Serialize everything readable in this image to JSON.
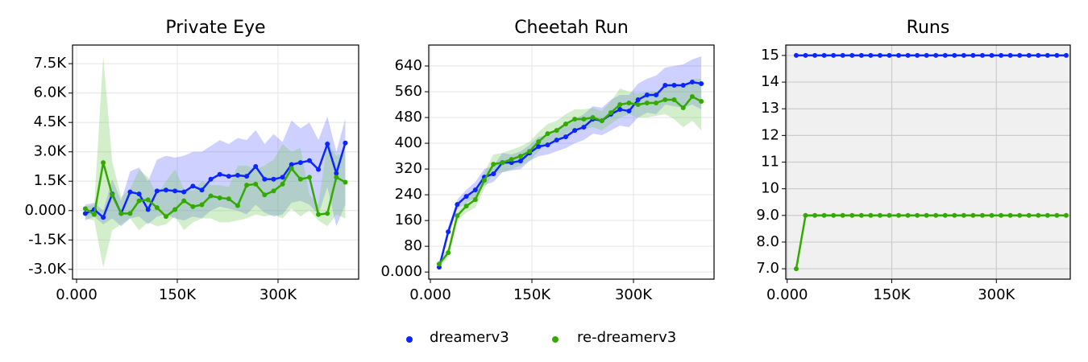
{
  "chart_data": [
    {
      "type": "line",
      "title": "Private Eye",
      "x": [
        13000,
        26350,
        39700,
        53050,
        66400,
        79750,
        93100,
        106450,
        119800,
        133150,
        146500,
        159850,
        173200,
        186550,
        199900,
        213250,
        226600,
        239950,
        253300,
        266650,
        280000,
        293350,
        306700,
        320050,
        333400,
        346750,
        360100,
        373450,
        386800,
        400150
      ],
      "xlim": [
        -6000,
        420000
      ],
      "xticks": [
        {
          "value": 0,
          "label": "0.000"
        },
        {
          "value": 150000,
          "label": "150K"
        },
        {
          "value": 300000,
          "label": "300K"
        }
      ],
      "ylim": [
        -3500,
        8450
      ],
      "yticks": [
        {
          "value": -3000,
          "label": "-3.0K"
        },
        {
          "value": -1500,
          "label": "-1.5K"
        },
        {
          "value": 0,
          "label": "0.000"
        },
        {
          "value": 1500,
          "label": "1.5K"
        },
        {
          "value": 3000,
          "label": "3.0K"
        },
        {
          "value": 4500,
          "label": "4.5K"
        },
        {
          "value": 6000,
          "label": "6.0K"
        },
        {
          "value": 7500,
          "label": "7.5K"
        }
      ],
      "grid": true,
      "facecolor": "#ffffff",
      "grid_color": "#e8e8e8",
      "series": [
        {
          "name": "dreamerv3",
          "color": "#0a25ff",
          "values": [
            -150,
            50,
            -350,
            850,
            -150,
            950,
            850,
            50,
            1000,
            1050,
            1000,
            950,
            1250,
            1050,
            1600,
            1850,
            1750,
            1800,
            1750,
            2250,
            1600,
            1600,
            1700,
            2350,
            2450,
            2550,
            2100,
            3400,
            1900,
            3450
          ],
          "lower": [
            -500,
            -300,
            -700,
            -400,
            -800,
            -400,
            -300,
            -700,
            -300,
            -200,
            -400,
            -500,
            -300,
            -400,
            0,
            200,
            100,
            0,
            -200,
            300,
            -100,
            -300,
            -200,
            400,
            500,
            300,
            -200,
            1200,
            -800,
            300
          ],
          "upper": [
            300,
            400,
            0,
            1600,
            500,
            2000,
            2200,
            1500,
            2600,
            2800,
            2700,
            2800,
            3000,
            3000,
            3300,
            3600,
            3400,
            3700,
            3600,
            4100,
            3400,
            3900,
            3500,
            4600,
            4200,
            4500,
            3600,
            4800,
            3000,
            4700
          ]
        },
        {
          "name": "re-dreamerv3",
          "color": "#33aa00",
          "values": [
            100,
            -200,
            2450,
            800,
            -150,
            -150,
            500,
            550,
            150,
            -300,
            50,
            500,
            200,
            300,
            750,
            650,
            600,
            250,
            1300,
            1350,
            800,
            1000,
            1350,
            2150,
            1600,
            1700,
            -200,
            -150,
            1700,
            1450
          ],
          "lower": [
            -400,
            -500,
            -2900,
            -1000,
            -700,
            -400,
            -1000,
            -600,
            -800,
            -700,
            -300,
            -1000,
            -600,
            -400,
            -400,
            -600,
            -600,
            -500,
            -400,
            -200,
            -300,
            -200,
            -400,
            100,
            -300,
            0,
            -500,
            -800,
            -200,
            -400
          ],
          "upper": [
            200,
            300,
            7900,
            2500,
            700,
            1100,
            2100,
            1700,
            800,
            1500,
            2100,
            1100,
            1000,
            1500,
            1300,
            1300,
            1200,
            2300,
            2300,
            2100,
            2300,
            2600,
            3400,
            3000,
            3200,
            800,
            300,
            3500,
            2800,
            3000
          ]
        }
      ]
    },
    {
      "type": "line",
      "title": "Cheetah Run",
      "x": [
        13000,
        26350,
        39700,
        53050,
        66400,
        79750,
        93100,
        106450,
        119800,
        133150,
        146500,
        159850,
        173200,
        186550,
        199900,
        213250,
        226600,
        239950,
        253300,
        266650,
        280000,
        293350,
        306700,
        320050,
        333400,
        346750,
        360100,
        373450,
        386800,
        400150
      ],
      "xlim": [
        -2400,
        419000
      ],
      "xticks": [
        {
          "value": 0,
          "label": "0.000"
        },
        {
          "value": 150000,
          "label": "150K"
        },
        {
          "value": 300000,
          "label": "300K"
        }
      ],
      "ylim": [
        -22,
        705
      ],
      "yticks": [
        {
          "value": 0,
          "label": "0.000"
        },
        80,
        160,
        240,
        320,
        400,
        480,
        560,
        640
      ],
      "grid": true,
      "facecolor": "#ffffff",
      "grid_color": "#e8e8e8",
      "series": [
        {
          "color": "#0a25ff",
          "values": [
            15,
            125,
            210,
            235,
            255,
            295,
            305,
            340,
            340,
            345,
            370,
            390,
            395,
            410,
            420,
            440,
            450,
            475,
            470,
            490,
            505,
            500,
            535,
            550,
            550,
            580,
            580,
            580,
            590,
            585
          ],
          "lower": [
            10,
            110,
            195,
            215,
            230,
            270,
            280,
            310,
            315,
            320,
            345,
            360,
            365,
            375,
            385,
            400,
            410,
            430,
            425,
            440,
            455,
            450,
            480,
            495,
            490,
            520,
            515,
            510,
            520,
            505
          ],
          "upper": [
            25,
            140,
            225,
            255,
            280,
            320,
            330,
            370,
            365,
            375,
            395,
            420,
            425,
            440,
            455,
            475,
            490,
            515,
            510,
            535,
            550,
            550,
            585,
            600,
            610,
            635,
            640,
            645,
            660,
            670
          ]
        },
        {
          "color": "#33aa00",
          "values": [
            25,
            60,
            175,
            205,
            225,
            285,
            335,
            340,
            350,
            360,
            375,
            405,
            430,
            440,
            460,
            475,
            475,
            480,
            470,
            495,
            520,
            525,
            520,
            525,
            525,
            535,
            535,
            510,
            545,
            530
          ],
          "lower": [
            15,
            45,
            160,
            185,
            200,
            260,
            305,
            310,
            320,
            330,
            345,
            375,
            400,
            410,
            430,
            445,
            445,
            450,
            440,
            460,
            480,
            490,
            480,
            480,
            485,
            490,
            475,
            450,
            470,
            440
          ],
          "upper": [
            35,
            75,
            190,
            225,
            250,
            310,
            365,
            370,
            380,
            390,
            405,
            435,
            460,
            470,
            490,
            505,
            505,
            510,
            500,
            530,
            570,
            560,
            555,
            560,
            560,
            575,
            590,
            570,
            600,
            600
          ]
        }
      ]
    },
    {
      "type": "line",
      "title": "Runs",
      "x": [
        13000,
        26350,
        39700,
        53050,
        66400,
        79750,
        93100,
        106450,
        119800,
        133150,
        146500,
        159850,
        173200,
        186550,
        199900,
        213250,
        226600,
        239950,
        253300,
        266650,
        280000,
        293350,
        306700,
        320050,
        333400,
        346750,
        360100,
        373450,
        386800,
        400150
      ],
      "xlim": [
        -2000,
        406000
      ],
      "xticks": [
        {
          "value": 0,
          "label": "0.000"
        },
        {
          "value": 150000,
          "label": "150K"
        },
        {
          "value": 300000,
          "label": "300K"
        }
      ],
      "ylim": [
        6.61,
        15.39
      ],
      "yticks": [
        {
          "value": 7,
          "label": "7.0"
        },
        {
          "value": 8,
          "label": "8.0"
        },
        {
          "value": 9,
          "label": "9.0"
        },
        10,
        11,
        12,
        13,
        14,
        15
      ],
      "grid": true,
      "facecolor": "#f0f0f0",
      "grid_color": "#cccccc",
      "series": [
        {
          "color": "#0a25ff",
          "values": [
            15,
            15,
            15,
            15,
            15,
            15,
            15,
            15,
            15,
            15,
            15,
            15,
            15,
            15,
            15,
            15,
            15,
            15,
            15,
            15,
            15,
            15,
            15,
            15,
            15,
            15,
            15,
            15,
            15,
            15
          ]
        },
        {
          "color": "#33aa00",
          "values": [
            7,
            9,
            9,
            9,
            9,
            9,
            9,
            9,
            9,
            9,
            9,
            9,
            9,
            9,
            9,
            9,
            9,
            9,
            9,
            9,
            9,
            9,
            9,
            9,
            9,
            9,
            9,
            9,
            9,
            9
          ]
        }
      ]
    }
  ]
}
